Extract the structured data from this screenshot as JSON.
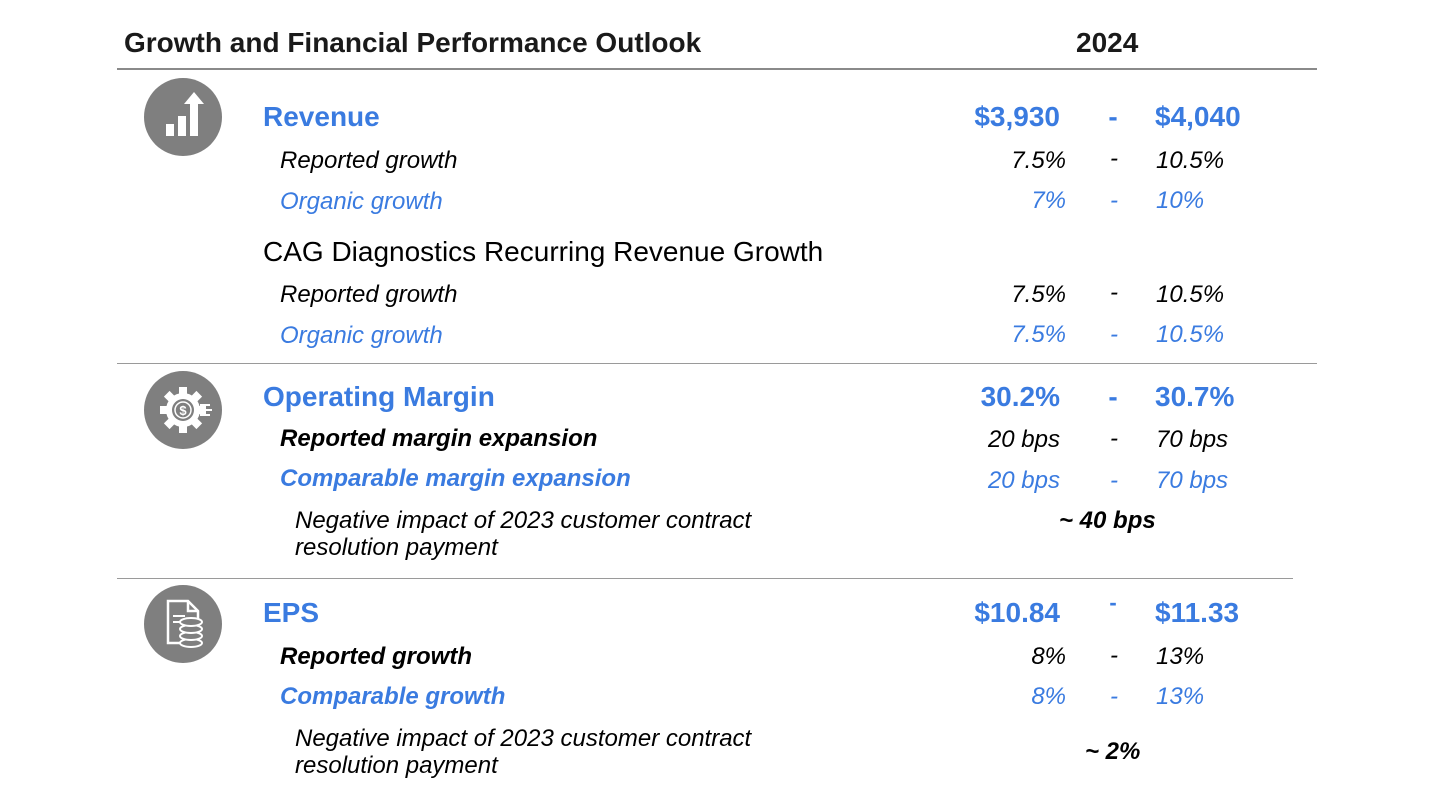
{
  "header": {
    "title": "Growth and Financial Performance Outlook",
    "year": "2024"
  },
  "revenue": {
    "title": "Revenue",
    "low": "$3,930",
    "sep": "-",
    "high": "$4,040",
    "reported": {
      "label": "Reported growth",
      "low": "7.5%",
      "sep": "-",
      "high": "10.5%"
    },
    "organic": {
      "label": "Organic growth",
      "low": "7%",
      "sep": "-",
      "high": "10%"
    }
  },
  "cag": {
    "title": "CAG Diagnostics Recurring Revenue Growth",
    "reported": {
      "label": "Reported growth",
      "low": "7.5%",
      "sep": "-",
      "high": "10.5%"
    },
    "organic": {
      "label": "Organic growth",
      "low": "7.5%",
      "sep": "-",
      "high": "10.5%"
    }
  },
  "operating_margin": {
    "title": "Operating Margin",
    "low": "30.2%",
    "sep": "-",
    "high": "30.7%",
    "reported": {
      "label": "Reported margin expansion",
      "low": "20 bps",
      "sep": "-",
      "high": "70 bps"
    },
    "comparable": {
      "label": "Comparable margin expansion",
      "low": "20 bps",
      "sep": "-",
      "high": "70 bps"
    },
    "note": {
      "line1": "Negative impact of 2023 customer contract",
      "line2": "resolution payment",
      "value": "~ 40 bps"
    }
  },
  "eps": {
    "title": "EPS",
    "low": "$10.84",
    "sep": "-",
    "high": "$11.33",
    "reported": {
      "label": "Reported growth",
      "low": "8%",
      "sep": "-",
      "high": "13%"
    },
    "comparable": {
      "label": "Comparable growth",
      "low": "8%",
      "sep": "-",
      "high": "13%"
    },
    "note": {
      "line1": "Negative impact of 2023 customer contract",
      "line2": "resolution payment",
      "value": "~ 2%"
    }
  },
  "icons": [
    "bar-chart-up-icon",
    "gear-dollar-icon",
    "document-coins-icon"
  ],
  "colors": {
    "accent": "#3a7be0",
    "icon_bg": "#7f7f7f",
    "rule": "#9a9a9a"
  }
}
